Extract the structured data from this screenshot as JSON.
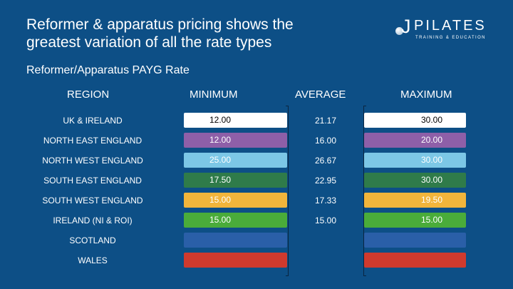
{
  "title_line1": "Reformer & apparatus pricing shows the",
  "title_line2": "greatest variation of all the rate types",
  "subtitle": "Reformer/Apparatus PAYG Rate",
  "logo": {
    "letter": "J",
    "word": "PILATES",
    "tagline": "TRAINING & EDUCATION"
  },
  "chart_data": {
    "type": "table",
    "columns": [
      "REGION",
      "MINIMUM",
      "AVERAGE",
      "MAXIMUM"
    ],
    "rows": [
      {
        "region": "UK & IRELAND",
        "min": "12.00",
        "avg": "21.17",
        "max": "30.00",
        "color": "#ffffff",
        "text_color": "#000000"
      },
      {
        "region": "NORTH EAST ENGLAND",
        "min": "12.00",
        "avg": "16.00",
        "max": "20.00",
        "color": "#8e5fa8",
        "text_color": "#ffffff"
      },
      {
        "region": "NORTH WEST ENGLAND",
        "min": "25.00",
        "avg": "26.67",
        "max": "30.00",
        "color": "#7cc7e6",
        "text_color": "#ffffff"
      },
      {
        "region": "SOUTH EAST ENGLAND",
        "min": "17.50",
        "avg": "22.95",
        "max": "30.00",
        "color": "#2f7b4a",
        "text_color": "#ffffff"
      },
      {
        "region": "SOUTH WEST ENGLAND",
        "min": "15.00",
        "avg": "17.33",
        "max": "19.50",
        "color": "#f2b53b",
        "text_color": "#ffffff"
      },
      {
        "region": "IRELAND (NI & ROI)",
        "min": "15.00",
        "avg": "15.00",
        "max": "15.00",
        "color": "#4aac3a",
        "text_color": "#ffffff"
      },
      {
        "region": "SCOTLAND",
        "min": "",
        "avg": "",
        "max": "",
        "color": "#2a5fa8",
        "text_color": "#ffffff"
      },
      {
        "region": "WALES",
        "min": "",
        "avg": "",
        "max": "",
        "color": "#cf3a2e",
        "text_color": "#ffffff"
      }
    ]
  }
}
